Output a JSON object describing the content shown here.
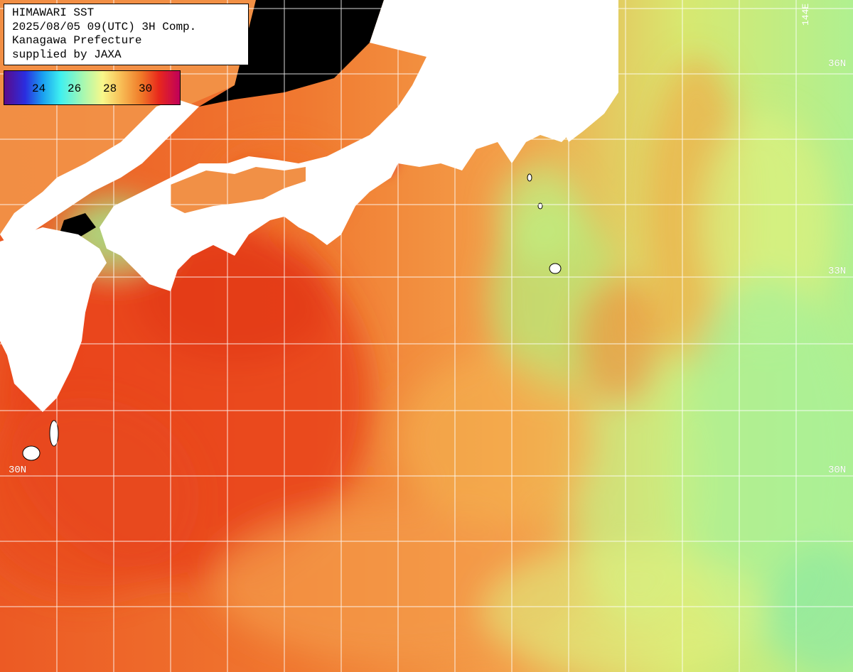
{
  "header": {
    "line1": "HIMAWARI SST",
    "line2": "2025/08/05 09(UTC) 3H Comp.",
    "line3": "Kanagawa Prefecture",
    "line4": "supplied by JAXA"
  },
  "legend": {
    "ticks": [
      "24",
      "26",
      "28",
      "30"
    ],
    "gradient_colors": [
      "#5a0a8a",
      "#2a2ee0",
      "#1aa0f0",
      "#3ff0f0",
      "#a8f8b0",
      "#f8f88a",
      "#f8c058",
      "#f07a28",
      "#e8281c",
      "#c0005a"
    ]
  },
  "grid_labels": {
    "lat_36_right": "36N",
    "lat_33_right": "33N",
    "lat_30_left": "30N",
    "lat_30_right": "30N",
    "lon_top": "144E"
  },
  "colors": {
    "land": "#ffffff",
    "cloud_mask": "#000000",
    "sea_warm": "#f07a30",
    "sea_hot": "#e8441e",
    "sea_cool": "#a8f080",
    "sea_mild": "#f8e870",
    "grid": "#ffffff"
  }
}
